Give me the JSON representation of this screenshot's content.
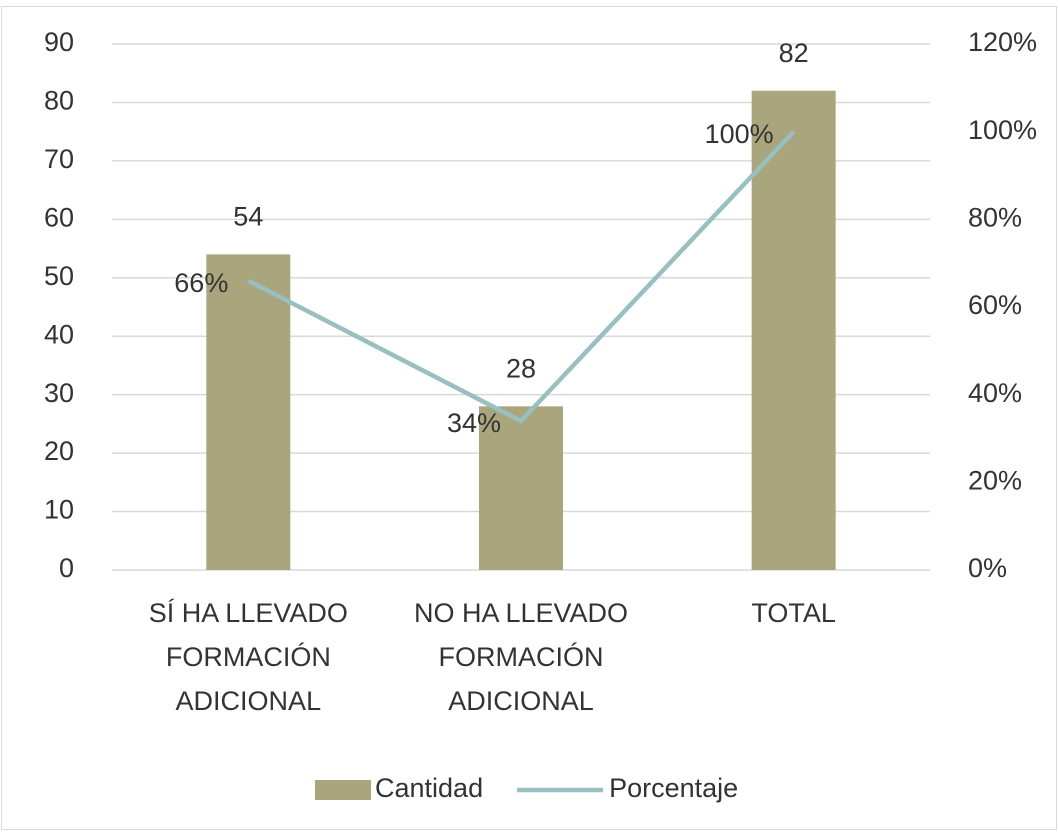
{
  "chart_data": {
    "type": "bar",
    "categories": [
      "SÍ HA LLEVADO FORMACIÓN ADICIONAL",
      "NO HA LLEVADO FORMACIÓN ADICIONAL",
      "TOTAL"
    ],
    "series": [
      {
        "name": "Cantidad",
        "type": "bar",
        "color": "#a9a57c",
        "values": [
          54,
          28,
          82
        ]
      },
      {
        "name": "Porcentaje",
        "type": "line",
        "axis": "y2",
        "color": "#98c0c1",
        "values": [
          66,
          34,
          100
        ],
        "value_labels": [
          "66%",
          "34%",
          "100%"
        ]
      }
    ],
    "ylim": [
      0,
      90
    ],
    "yticks": [
      0,
      10,
      20,
      30,
      40,
      50,
      60,
      70,
      80,
      90
    ],
    "y2lim": [
      0,
      120
    ],
    "y2ticks": [
      {
        "value": 0,
        "label": "0%"
      },
      {
        "value": 20,
        "label": "20%"
      },
      {
        "value": 40,
        "label": "40%"
      },
      {
        "value": 60,
        "label": "60%"
      },
      {
        "value": 80,
        "label": "80%"
      },
      {
        "value": 100,
        "label": "100%"
      },
      {
        "value": 120,
        "label": "120%"
      }
    ],
    "grid": true,
    "legend": "bottom"
  }
}
